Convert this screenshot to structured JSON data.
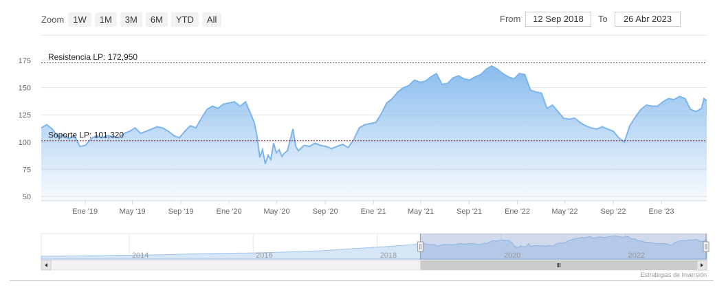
{
  "toolbar": {
    "zoom_label": "Zoom",
    "zoom_buttons": [
      "1W",
      "1M",
      "3M",
      "6M",
      "YTD",
      "All"
    ],
    "from_label": "From",
    "from_value": "12 Sep 2018",
    "to_label": "To",
    "to_value": "26 Abr 2023"
  },
  "chart_data": {
    "type": "area",
    "title": "",
    "xlabel": "",
    "ylabel": "",
    "series_color": "#7cb5ec",
    "ylim": [
      50,
      175
    ],
    "yticks": [
      50,
      75,
      100,
      125,
      150,
      175
    ],
    "xlim": [
      "2018-09-12",
      "2023-04-26"
    ],
    "xticks": [
      {
        "label": "Ene '19",
        "date": "2019-01-01"
      },
      {
        "label": "May '19",
        "date": "2019-05-01"
      },
      {
        "label": "Sep '19",
        "date": "2019-09-01"
      },
      {
        "label": "Ene '20",
        "date": "2020-01-01"
      },
      {
        "label": "May '20",
        "date": "2020-05-01"
      },
      {
        "label": "Sep '20",
        "date": "2020-09-01"
      },
      {
        "label": "Ene '21",
        "date": "2021-01-01"
      },
      {
        "label": "May '21",
        "date": "2021-05-01"
      },
      {
        "label": "Sep '21",
        "date": "2021-09-01"
      },
      {
        "label": "Ene '22",
        "date": "2022-01-01"
      },
      {
        "label": "May '22",
        "date": "2022-05-01"
      },
      {
        "label": "Sep '22",
        "date": "2022-09-01"
      },
      {
        "label": "Ene '23",
        "date": "2023-01-01"
      }
    ],
    "reference_lines": [
      {
        "label": "Resistencia LP: 172,950",
        "value": 172.95,
        "color": "#333333"
      },
      {
        "label": "Soporte LP: 101,320",
        "value": 101.32,
        "color": "#8b1a1a"
      }
    ],
    "series": [
      {
        "points": [
          [
            "2018-09-12",
            113
          ],
          [
            "2018-09-26",
            116
          ],
          [
            "2018-10-10",
            112
          ],
          [
            "2018-10-24",
            105
          ],
          [
            "2018-11-07",
            107
          ],
          [
            "2018-11-21",
            103
          ],
          [
            "2018-12-05",
            106
          ],
          [
            "2018-12-19",
            96
          ],
          [
            "2019-01-02",
            97
          ],
          [
            "2019-01-16",
            103
          ],
          [
            "2019-01-30",
            106
          ],
          [
            "2019-02-13",
            104
          ],
          [
            "2019-02-27",
            106
          ],
          [
            "2019-03-13",
            105
          ],
          [
            "2019-03-27",
            104
          ],
          [
            "2019-04-10",
            108
          ],
          [
            "2019-04-24",
            110
          ],
          [
            "2019-05-08",
            113
          ],
          [
            "2019-05-22",
            108
          ],
          [
            "2019-06-05",
            110
          ],
          [
            "2019-06-19",
            112
          ],
          [
            "2019-07-03",
            114
          ],
          [
            "2019-07-17",
            113
          ],
          [
            "2019-07-31",
            110
          ],
          [
            "2019-08-14",
            106
          ],
          [
            "2019-08-28",
            104
          ],
          [
            "2019-09-11",
            110
          ],
          [
            "2019-09-25",
            115
          ],
          [
            "2019-10-09",
            113
          ],
          [
            "2019-10-23",
            122
          ],
          [
            "2019-11-06",
            130
          ],
          [
            "2019-11-20",
            133
          ],
          [
            "2019-12-04",
            131
          ],
          [
            "2019-12-18",
            135
          ],
          [
            "2020-01-01",
            136
          ],
          [
            "2020-01-15",
            137
          ],
          [
            "2020-01-29",
            133
          ],
          [
            "2020-02-12",
            137
          ],
          [
            "2020-02-26",
            125
          ],
          [
            "2020-03-05",
            118
          ],
          [
            "2020-03-12",
            105
          ],
          [
            "2020-03-19",
            86
          ],
          [
            "2020-03-26",
            93
          ],
          [
            "2020-04-02",
            80
          ],
          [
            "2020-04-09",
            88
          ],
          [
            "2020-04-16",
            84
          ],
          [
            "2020-04-23",
            99
          ],
          [
            "2020-04-30",
            90
          ],
          [
            "2020-05-07",
            93
          ],
          [
            "2020-05-14",
            87
          ],
          [
            "2020-05-21",
            90
          ],
          [
            "2020-05-28",
            92
          ],
          [
            "2020-06-04",
            102
          ],
          [
            "2020-06-11",
            112
          ],
          [
            "2020-06-18",
            96
          ],
          [
            "2020-06-25",
            92
          ],
          [
            "2020-07-09",
            97
          ],
          [
            "2020-07-23",
            96
          ],
          [
            "2020-08-06",
            99
          ],
          [
            "2020-08-20",
            97
          ],
          [
            "2020-09-03",
            96
          ],
          [
            "2020-09-17",
            94
          ],
          [
            "2020-10-01",
            96
          ],
          [
            "2020-10-15",
            98
          ],
          [
            "2020-10-29",
            95
          ],
          [
            "2020-11-12",
            102
          ],
          [
            "2020-11-26",
            113
          ],
          [
            "2020-12-10",
            116
          ],
          [
            "2020-12-24",
            117
          ],
          [
            "2021-01-07",
            118
          ],
          [
            "2021-01-21",
            126
          ],
          [
            "2021-02-04",
            136
          ],
          [
            "2021-02-18",
            140
          ],
          [
            "2021-03-04",
            146
          ],
          [
            "2021-03-18",
            150
          ],
          [
            "2021-04-01",
            152
          ],
          [
            "2021-04-15",
            157
          ],
          [
            "2021-04-29",
            155
          ],
          [
            "2021-05-13",
            156
          ],
          [
            "2021-05-27",
            160
          ],
          [
            "2021-06-10",
            163
          ],
          [
            "2021-06-24",
            153
          ],
          [
            "2021-07-08",
            154
          ],
          [
            "2021-07-22",
            159
          ],
          [
            "2021-08-05",
            161
          ],
          [
            "2021-08-19",
            158
          ],
          [
            "2021-09-02",
            157
          ],
          [
            "2021-09-16",
            160
          ],
          [
            "2021-09-30",
            162
          ],
          [
            "2021-10-14",
            167
          ],
          [
            "2021-10-28",
            170
          ],
          [
            "2021-11-11",
            167
          ],
          [
            "2021-11-25",
            163
          ],
          [
            "2021-12-09",
            160
          ],
          [
            "2021-12-23",
            158
          ],
          [
            "2022-01-06",
            163
          ],
          [
            "2022-01-20",
            162
          ],
          [
            "2022-02-03",
            148
          ],
          [
            "2022-02-17",
            146
          ],
          [
            "2022-03-03",
            145
          ],
          [
            "2022-03-17",
            131
          ],
          [
            "2022-03-31",
            134
          ],
          [
            "2022-04-14",
            128
          ],
          [
            "2022-04-28",
            122
          ],
          [
            "2022-05-12",
            121
          ],
          [
            "2022-05-26",
            122
          ],
          [
            "2022-06-09",
            118
          ],
          [
            "2022-06-23",
            115
          ],
          [
            "2022-07-07",
            113
          ],
          [
            "2022-07-21",
            112
          ],
          [
            "2022-08-04",
            114
          ],
          [
            "2022-08-18",
            112
          ],
          [
            "2022-09-01",
            110
          ],
          [
            "2022-09-15",
            104
          ],
          [
            "2022-09-29",
            100
          ],
          [
            "2022-10-13",
            115
          ],
          [
            "2022-10-27",
            123
          ],
          [
            "2022-11-10",
            130
          ],
          [
            "2022-11-24",
            134
          ],
          [
            "2022-12-08",
            133
          ],
          [
            "2022-12-22",
            133
          ],
          [
            "2023-01-05",
            137
          ],
          [
            "2023-01-19",
            140
          ],
          [
            "2023-02-02",
            139
          ],
          [
            "2023-02-16",
            142
          ],
          [
            "2023-03-02",
            140
          ],
          [
            "2023-03-16",
            130
          ],
          [
            "2023-03-30",
            128
          ],
          [
            "2023-04-13",
            131
          ],
          [
            "2023-04-19",
            140
          ],
          [
            "2023-04-26",
            138
          ]
        ]
      }
    ]
  },
  "navigator": {
    "year_labels": [
      {
        "label": "2014",
        "date": "2014-01-01"
      },
      {
        "label": "2016",
        "date": "2016-01-01"
      },
      {
        "label": "2018",
        "date": "2018-01-01"
      },
      {
        "label": "2020",
        "date": "2020-01-01"
      },
      {
        "label": "2022",
        "date": "2022-01-01"
      }
    ],
    "range": [
      "2012-08-01",
      "2023-04-26"
    ],
    "history": [
      [
        "2012-08-01",
        20
      ],
      [
        "2013-02-01",
        22
      ],
      [
        "2013-08-01",
        25
      ],
      [
        "2014-02-01",
        28
      ],
      [
        "2014-08-01",
        32
      ],
      [
        "2015-02-01",
        38
      ],
      [
        "2015-08-01",
        42
      ],
      [
        "2016-02-01",
        45
      ],
      [
        "2016-08-01",
        52
      ],
      [
        "2017-02-01",
        60
      ],
      [
        "2017-08-01",
        75
      ],
      [
        "2018-02-01",
        88
      ],
      [
        "2018-08-01",
        105
      ]
    ]
  },
  "credit": "Estrategias de Inversión"
}
